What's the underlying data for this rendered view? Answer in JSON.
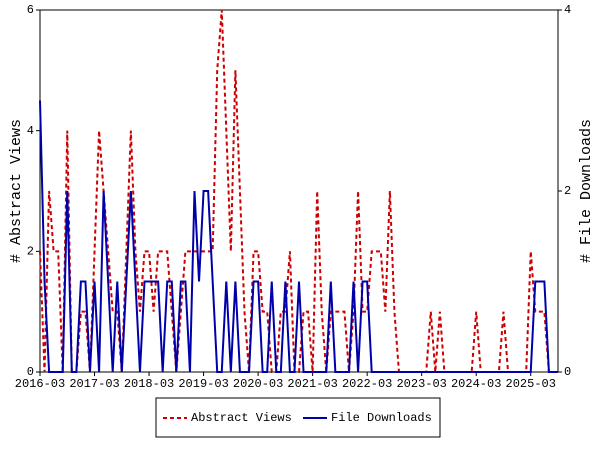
{
  "chart_data": {
    "type": "line",
    "x": [
      "2016-03",
      "2016-04",
      "2016-05",
      "2016-06",
      "2016-07",
      "2016-08",
      "2016-09",
      "2016-10",
      "2016-11",
      "2016-12",
      "2017-01",
      "2017-02",
      "2017-03",
      "2017-04",
      "2017-05",
      "2017-06",
      "2017-07",
      "2017-08",
      "2017-09",
      "2017-10",
      "2017-11",
      "2017-12",
      "2018-01",
      "2018-02",
      "2018-03",
      "2018-04",
      "2018-05",
      "2018-06",
      "2018-07",
      "2018-08",
      "2018-09",
      "2018-10",
      "2018-11",
      "2018-12",
      "2019-01",
      "2019-02",
      "2019-03",
      "2019-04",
      "2019-05",
      "2019-06",
      "2019-07",
      "2019-08",
      "2019-09",
      "2019-10",
      "2019-11",
      "2019-12",
      "2020-01",
      "2020-02",
      "2020-03",
      "2020-04",
      "2020-05",
      "2020-06",
      "2020-07",
      "2020-08",
      "2020-09",
      "2020-10",
      "2020-11",
      "2020-12",
      "2021-01",
      "2021-02",
      "2021-03",
      "2021-04",
      "2021-05",
      "2021-06",
      "2021-07",
      "2021-08",
      "2021-09",
      "2021-10",
      "2021-11",
      "2021-12",
      "2022-01",
      "2022-02",
      "2022-03",
      "2022-04",
      "2022-05",
      "2022-06",
      "2022-07",
      "2022-08",
      "2022-09",
      "2022-10",
      "2022-11",
      "2022-12",
      "2023-01",
      "2023-02",
      "2023-03",
      "2023-04",
      "2023-05",
      "2023-06",
      "2023-07",
      "2023-08",
      "2023-09",
      "2023-10",
      "2023-11",
      "2023-12",
      "2024-01",
      "2024-02",
      "2024-03",
      "2024-04",
      "2024-05",
      "2024-06",
      "2024-07",
      "2024-08",
      "2024-09",
      "2024-10",
      "2024-11",
      "2024-12",
      "2025-01",
      "2025-02",
      "2025-03",
      "2025-04",
      "2025-05",
      "2025-06",
      "2025-07",
      "2025-08",
      "2025-09"
    ],
    "xticks": [
      "2016-03",
      "2017-03",
      "2018-03",
      "2019-03",
      "2020-03",
      "2021-03",
      "2022-03",
      "2023-03",
      "2024-03",
      "2025-03"
    ],
    "ylabel": "# Abstract Views",
    "y2label": "# File Downloads",
    "ylim": [
      0,
      6
    ],
    "yticks": [
      0,
      2,
      4,
      6
    ],
    "y2lim": [
      0,
      4
    ],
    "y2ticks": [
      0,
      2,
      4
    ],
    "series": [
      {
        "name": "Abstract Views",
        "color": "#cc0000",
        "dashed": true,
        "values": [
          2,
          0,
          3,
          2,
          2,
          0,
          4,
          0,
          0,
          1,
          1,
          0,
          2,
          4,
          3,
          2,
          1,
          1,
          0,
          2,
          4,
          2,
          1,
          2,
          2,
          1,
          2,
          2,
          2,
          1,
          0,
          1,
          2,
          2,
          2,
          2,
          2,
          2,
          2,
          5,
          6,
          4,
          2,
          5,
          3,
          1,
          0,
          2,
          2,
          1,
          1,
          0,
          0,
          1,
          1,
          2,
          0,
          0,
          1,
          1,
          0,
          3,
          1,
          0,
          1,
          1,
          1,
          1,
          0,
          1,
          3,
          1,
          1,
          2,
          2,
          2,
          1,
          3,
          1,
          0,
          0,
          0,
          0,
          0,
          0,
          0,
          1,
          0,
          1,
          0,
          0,
          0,
          0,
          0,
          0,
          0,
          1,
          0,
          0,
          0,
          0,
          0,
          1,
          0,
          0,
          0,
          0,
          0,
          2,
          1,
          1,
          1,
          0,
          0,
          0
        ]
      },
      {
        "name": "File Downloads",
        "color": "#0000aa",
        "dashed": false,
        "axis": "y2",
        "values": [
          3,
          1,
          0,
          0,
          0,
          0,
          2,
          0,
          0,
          1,
          1,
          0,
          1,
          0,
          2,
          1,
          0,
          1,
          0,
          1,
          2,
          1,
          0,
          1,
          1,
          1,
          1,
          0,
          1,
          1,
          0,
          1,
          1,
          0,
          2,
          1,
          2,
          2,
          1,
          0,
          0,
          1,
          0,
          1,
          0,
          0,
          0,
          1,
          1,
          0,
          0,
          1,
          0,
          0,
          1,
          0,
          0,
          1,
          0,
          0,
          0,
          0,
          0,
          0,
          1,
          0,
          0,
          0,
          0,
          1,
          0,
          1,
          1,
          0,
          0,
          0,
          0,
          0,
          0,
          0,
          0,
          0,
          0,
          0,
          0,
          0,
          0,
          0,
          0,
          0,
          0,
          0,
          0,
          0,
          0,
          0,
          0,
          0,
          0,
          0,
          0,
          0,
          0,
          0,
          0,
          0,
          0,
          0,
          0,
          1,
          1,
          1,
          0,
          0,
          0
        ]
      }
    ]
  }
}
